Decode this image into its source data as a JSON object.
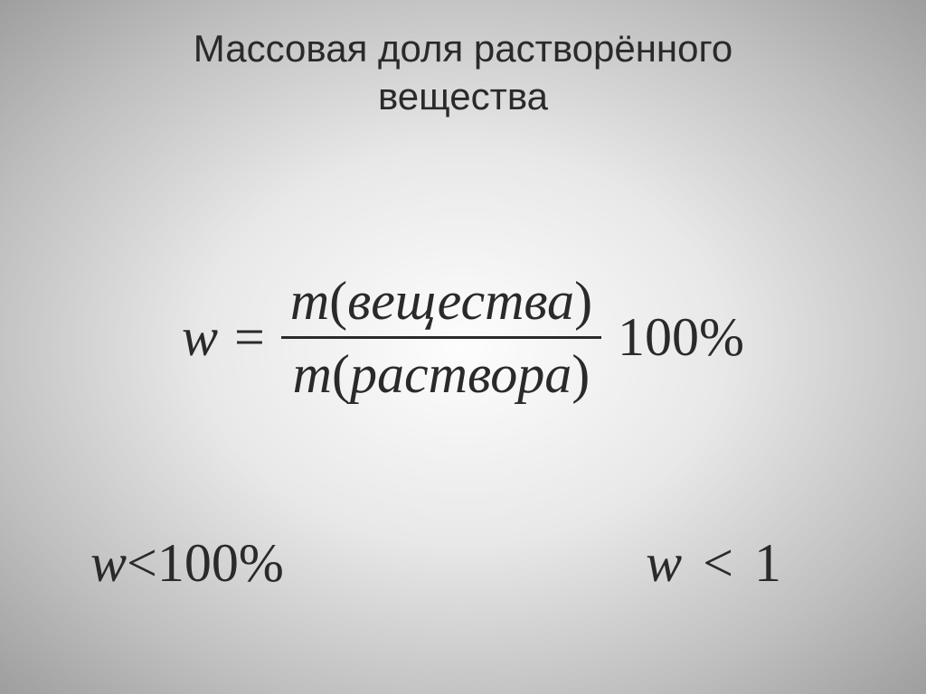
{
  "title_line1": "Массовая доля растворённого",
  "title_line2": "вещества",
  "formula": {
    "lhs_var": "w",
    "equals": "=",
    "numerator_var": "m",
    "numerator_paren_open": "(",
    "numerator_text": "вещества",
    "numerator_paren_close": ")",
    "denominator_var": "m",
    "denominator_paren_open": "(",
    "denominator_text": "раствора",
    "denominator_paren_close": ")",
    "multiplier": "100%"
  },
  "ineq_left": {
    "var": "w",
    "op": "<",
    "rhs": "100%"
  },
  "ineq_right": {
    "var": "w",
    "op": "<",
    "rhs": "1"
  },
  "colors": {
    "text": "#2a2a2a",
    "bg_center": "#fdfdfd",
    "bg_edge": "#9e9e9e"
  },
  "fonts": {
    "title_family": "Arial",
    "title_size_pt": 32,
    "formula_family": "Times New Roman",
    "formula_size_pt": 45
  }
}
